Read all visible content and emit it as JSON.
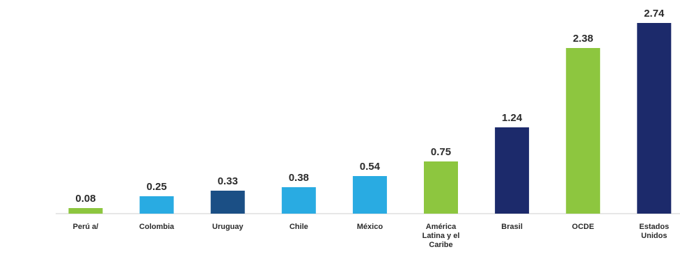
{
  "chart_data": {
    "type": "bar",
    "categories": [
      [
        "Perú a/"
      ],
      [
        "Colombia"
      ],
      [
        "Uruguay"
      ],
      [
        "Chile"
      ],
      [
        "México"
      ],
      [
        "América",
        "Latina y el",
        "Caribe"
      ],
      [
        "Brasil"
      ],
      [
        "OCDE"
      ],
      [
        "Estados",
        "Unidos"
      ]
    ],
    "values": [
      0.08,
      0.25,
      0.33,
      0.38,
      0.54,
      0.75,
      1.24,
      2.38,
      2.74
    ],
    "value_labels": [
      "0.08",
      "0.25",
      "0.33",
      "0.38",
      "0.54",
      "0.75",
      "1.24",
      "2.38",
      "2.74"
    ],
    "bar_colors": [
      "#8dc63f",
      "#29abe2",
      "#1b4f85",
      "#29abe2",
      "#29abe2",
      "#8dc63f",
      "#1c2a6b",
      "#8dc63f",
      "#1c2a6b"
    ],
    "ylim": [
      0,
      2.74
    ],
    "grid": false,
    "legend": "none"
  }
}
